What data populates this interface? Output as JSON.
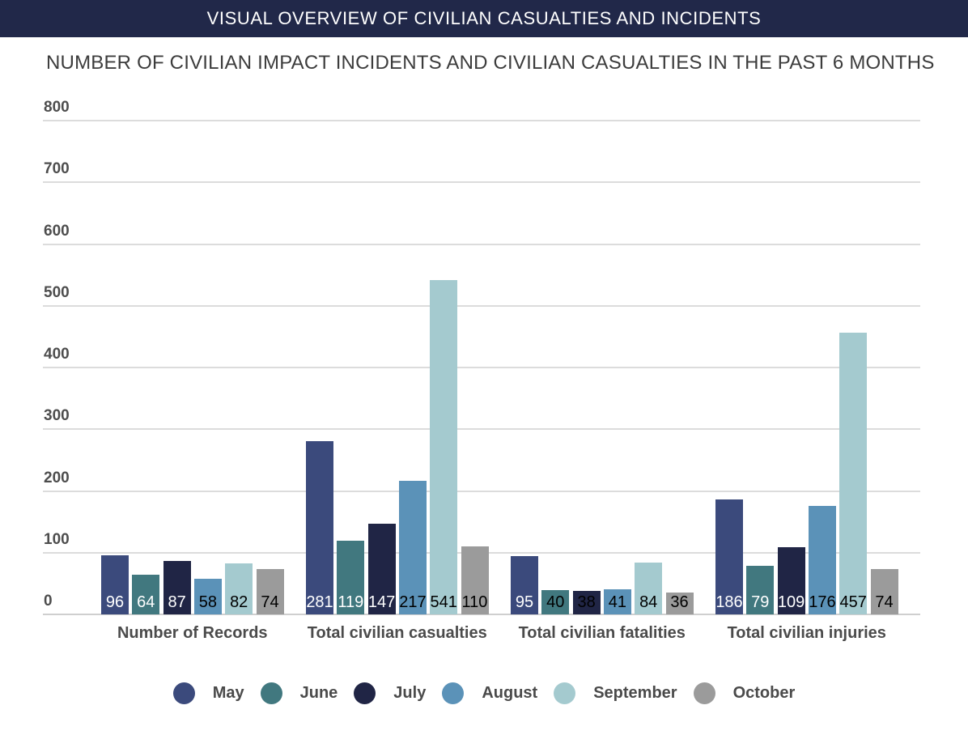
{
  "header": {
    "title": "VISUAL OVERVIEW OF CIVILIAN CASUALTIES AND INCIDENTS"
  },
  "colors": {
    "banner_bg": "#212849",
    "banner_text": "#ffffff",
    "gridline": "#dcdcdc",
    "axis_text": "#4d4d4d",
    "bar_label_light": "#ffffff",
    "bar_label_dark": "#000000"
  },
  "chart_data": {
    "type": "bar",
    "title": "NUMBER OF CIVILIAN IMPACT INCIDENTS AND CIVILIAN CASUALTIES IN THE PAST 6 MONTHS",
    "categories": [
      "Number of Records",
      "Total civilian casualties",
      "Total civilian fatalities",
      "Total civilian injuries"
    ],
    "series": [
      {
        "name": "May",
        "color": "#3b4a7c",
        "values": [
          96,
          281,
          95,
          186
        ]
      },
      {
        "name": "June",
        "color": "#41787f",
        "values": [
          64,
          119,
          40,
          79
        ]
      },
      {
        "name": "July",
        "color": "#202545",
        "values": [
          87,
          147,
          38,
          109
        ]
      },
      {
        "name": "August",
        "color": "#5b92b8",
        "values": [
          58,
          217,
          41,
          176
        ]
      },
      {
        "name": "September",
        "color": "#a4cacf",
        "values": [
          82,
          541,
          84,
          457
        ]
      },
      {
        "name": "October",
        "color": "#9b9b9b",
        "values": [
          74,
          110,
          36,
          74
        ]
      }
    ],
    "ylim": [
      0,
      800
    ],
    "yticks": [
      0,
      100,
      200,
      300,
      400,
      500,
      600,
      700,
      800
    ],
    "grid": true,
    "bar_value_labels": true,
    "legend_position": "bottom"
  }
}
